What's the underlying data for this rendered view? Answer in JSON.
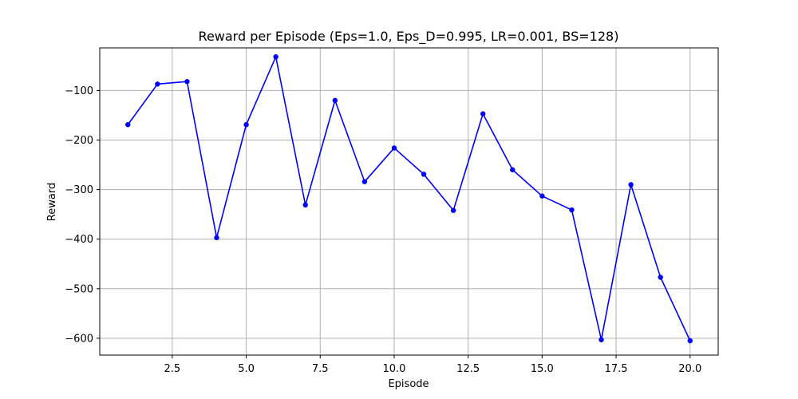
{
  "chart_data": {
    "type": "line",
    "title": "Reward per Episode (Eps=1.0, Eps_D=0.995, LR=0.001, BS=128)",
    "xlabel": "Episode",
    "ylabel": "Reward",
    "xlim": [
      0.05,
      20.95
    ],
    "ylim": [
      -634,
      -14
    ],
    "xticks": [
      2.5,
      5.0,
      7.5,
      10.0,
      12.5,
      15.0,
      17.5,
      20.0
    ],
    "xtick_labels": [
      "2.5",
      "5.0",
      "7.5",
      "10.0",
      "12.5",
      "15.0",
      "17.5",
      "20.0"
    ],
    "yticks": [
      -100,
      -200,
      -300,
      -400,
      -500,
      -600
    ],
    "ytick_labels": [
      "−100",
      "−200",
      "−300",
      "−400",
      "−500",
      "−600"
    ],
    "grid": true,
    "series": [
      {
        "x": [
          1,
          2,
          3,
          4,
          5,
          6,
          7,
          8,
          9,
          10,
          11,
          12,
          13,
          14,
          15,
          16,
          17,
          18,
          19,
          20
        ],
        "y": [
          -169,
          -87,
          -82,
          -397,
          -169,
          -32,
          -331,
          -120,
          -284,
          -216,
          -269,
          -342,
          -147,
          -260,
          -313,
          -341,
          -603,
          -290,
          -477,
          -605
        ],
        "color": "#0000ff",
        "marker": "circle"
      }
    ]
  }
}
